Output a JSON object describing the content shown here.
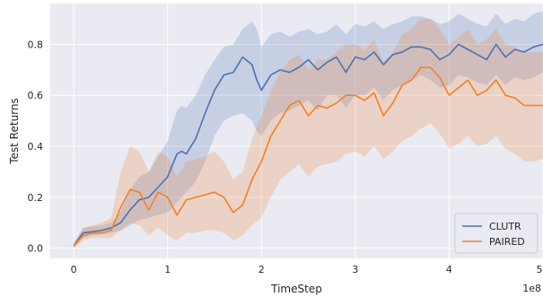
{
  "chart_data": {
    "type": "line",
    "title": "",
    "xlabel": "TimeStep",
    "ylabel": "Test Returns",
    "x_offset_label": "1e8",
    "xlim": [
      -0.25,
      5.0
    ],
    "ylim": [
      -0.04,
      0.96
    ],
    "xticks": [
      0,
      1,
      2,
      3,
      4,
      5
    ],
    "xtick_labels": [
      "0",
      "1",
      "2",
      "3",
      "4",
      "5"
    ],
    "yticks": [
      0.0,
      0.2,
      0.4,
      0.6,
      0.8
    ],
    "ytick_labels": [
      "0.0",
      "0.2",
      "0.4",
      "0.6",
      "0.8"
    ],
    "grid": true,
    "background": "#eaeaf2",
    "legend_position": "lower-right",
    "series": [
      {
        "name": "CLUTR",
        "color": "#4c72b0",
        "x": [
          0,
          0.1,
          0.2,
          0.3,
          0.4,
          0.5,
          0.6,
          0.7,
          0.8,
          0.9,
          1.0,
          1.1,
          1.15,
          1.2,
          1.3,
          1.4,
          1.5,
          1.6,
          1.7,
          1.8,
          1.9,
          1.95,
          2.0,
          2.1,
          2.2,
          2.3,
          2.4,
          2.5,
          2.6,
          2.7,
          2.8,
          2.9,
          3.0,
          3.1,
          3.2,
          3.3,
          3.4,
          3.5,
          3.6,
          3.7,
          3.8,
          3.9,
          4.0,
          4.1,
          4.2,
          4.3,
          4.4,
          4.5,
          4.6,
          4.7,
          4.8,
          4.9,
          5.0
        ],
        "y": [
          0.01,
          0.06,
          0.065,
          0.07,
          0.08,
          0.1,
          0.15,
          0.19,
          0.2,
          0.24,
          0.28,
          0.37,
          0.38,
          0.37,
          0.43,
          0.53,
          0.62,
          0.68,
          0.69,
          0.75,
          0.72,
          0.66,
          0.62,
          0.68,
          0.7,
          0.69,
          0.71,
          0.74,
          0.7,
          0.73,
          0.75,
          0.69,
          0.75,
          0.74,
          0.77,
          0.72,
          0.76,
          0.77,
          0.79,
          0.79,
          0.78,
          0.74,
          0.76,
          0.8,
          0.78,
          0.76,
          0.74,
          0.8,
          0.75,
          0.78,
          0.77,
          0.79,
          0.8
        ],
        "lower": [
          0.0,
          0.04,
          0.05,
          0.055,
          0.06,
          0.07,
          0.09,
          0.11,
          0.12,
          0.13,
          0.14,
          0.18,
          0.2,
          0.22,
          0.26,
          0.34,
          0.44,
          0.5,
          0.52,
          0.53,
          0.5,
          0.46,
          0.44,
          0.5,
          0.53,
          0.54,
          0.56,
          0.58,
          0.54,
          0.6,
          0.6,
          0.55,
          0.6,
          0.6,
          0.63,
          0.58,
          0.62,
          0.64,
          0.66,
          0.68,
          0.66,
          0.63,
          0.64,
          0.68,
          0.67,
          0.65,
          0.64,
          0.68,
          0.64,
          0.67,
          0.66,
          0.67,
          0.69
        ],
        "upper": [
          0.02,
          0.08,
          0.085,
          0.09,
          0.1,
          0.14,
          0.23,
          0.28,
          0.3,
          0.36,
          0.42,
          0.54,
          0.56,
          0.55,
          0.6,
          0.68,
          0.74,
          0.79,
          0.8,
          0.86,
          0.89,
          0.86,
          0.79,
          0.84,
          0.85,
          0.83,
          0.85,
          0.86,
          0.84,
          0.85,
          0.88,
          0.84,
          0.88,
          0.87,
          0.89,
          0.86,
          0.88,
          0.89,
          0.91,
          0.91,
          0.9,
          0.88,
          0.89,
          0.92,
          0.9,
          0.88,
          0.87,
          0.92,
          0.88,
          0.9,
          0.89,
          0.92,
          0.93
        ]
      },
      {
        "name": "PAIRED",
        "color": "#f28128",
        "x": [
          0,
          0.1,
          0.2,
          0.3,
          0.4,
          0.5,
          0.6,
          0.7,
          0.8,
          0.9,
          1.0,
          1.1,
          1.2,
          1.3,
          1.4,
          1.5,
          1.6,
          1.7,
          1.8,
          1.9,
          2.0,
          2.1,
          2.2,
          2.3,
          2.4,
          2.5,
          2.6,
          2.7,
          2.8,
          2.9,
          3.0,
          3.1,
          3.2,
          3.3,
          3.4,
          3.5,
          3.6,
          3.7,
          3.8,
          3.9,
          4.0,
          4.1,
          4.2,
          4.3,
          4.4,
          4.5,
          4.6,
          4.7,
          4.8,
          4.9,
          5.0
        ],
        "y": [
          0.01,
          0.05,
          0.06,
          0.06,
          0.07,
          0.16,
          0.23,
          0.22,
          0.15,
          0.22,
          0.2,
          0.13,
          0.19,
          0.2,
          0.21,
          0.22,
          0.2,
          0.14,
          0.17,
          0.27,
          0.34,
          0.44,
          0.5,
          0.56,
          0.58,
          0.52,
          0.56,
          0.55,
          0.57,
          0.6,
          0.6,
          0.58,
          0.61,
          0.52,
          0.57,
          0.64,
          0.66,
          0.71,
          0.71,
          0.67,
          0.6,
          0.63,
          0.66,
          0.6,
          0.62,
          0.66,
          0.6,
          0.59,
          0.56,
          0.56,
          0.56
        ],
        "lower": [
          0.0,
          0.03,
          0.04,
          0.04,
          0.04,
          0.07,
          0.1,
          0.09,
          0.05,
          0.08,
          0.05,
          0.03,
          0.06,
          0.06,
          0.07,
          0.07,
          0.06,
          0.03,
          0.05,
          0.09,
          0.12,
          0.2,
          0.27,
          0.3,
          0.33,
          0.28,
          0.32,
          0.33,
          0.34,
          0.37,
          0.38,
          0.36,
          0.4,
          0.35,
          0.38,
          0.42,
          0.44,
          0.47,
          0.49,
          0.45,
          0.39,
          0.41,
          0.44,
          0.4,
          0.41,
          0.44,
          0.39,
          0.37,
          0.34,
          0.34,
          0.35
        ],
        "upper": [
          0.02,
          0.08,
          0.09,
          0.1,
          0.12,
          0.3,
          0.4,
          0.38,
          0.3,
          0.38,
          0.36,
          0.28,
          0.34,
          0.35,
          0.36,
          0.38,
          0.34,
          0.27,
          0.3,
          0.43,
          0.52,
          0.62,
          0.69,
          0.74,
          0.76,
          0.7,
          0.74,
          0.74,
          0.77,
          0.8,
          0.8,
          0.78,
          0.82,
          0.73,
          0.77,
          0.84,
          0.86,
          0.9,
          0.9,
          0.86,
          0.8,
          0.83,
          0.86,
          0.8,
          0.82,
          0.86,
          0.8,
          0.79,
          0.77,
          0.77,
          0.77
        ]
      }
    ]
  }
}
